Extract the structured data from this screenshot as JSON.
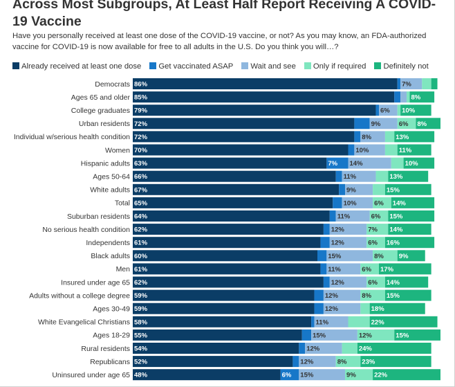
{
  "title": "Across Most Subgroups, At Least Half Report Receiving A COVID-19 Vaccine",
  "subtitle": "Have you personally received at least one dose of the COVID-19 vaccine, or not? As you may know, an FDA-authorized vaccine for COVID-19 is now available for free to all adults in the U.S. Do you think you will…?",
  "chart_data": {
    "type": "bar",
    "orientation": "horizontal",
    "stacked": true,
    "legend_position": "top",
    "grid": false,
    "categories": [
      "Democrats",
      "Ages 65 and older",
      "College graduates",
      "Urban residents",
      "Individual w/serious health condition",
      "Women",
      "Hispanic adults",
      "Ages 50-64",
      "White adults",
      "Total",
      "Suburban residents",
      "No serious health condition",
      "Independents",
      "Black adults",
      "Men",
      "Insured under age 65",
      "Adults without a college degree",
      "Ages 30-49",
      "White Evangelical Christians",
      "Ages 18-29",
      "Rural residents",
      "Republicans",
      "Uninsured under age 65"
    ],
    "series": [
      {
        "name": "Already received at least one dose",
        "color": "#0b3d66",
        "text_color": "#ffffff",
        "values": [
          86,
          85,
          79,
          72,
          72,
          70,
          63,
          66,
          67,
          65,
          64,
          62,
          61,
          60,
          61,
          62,
          59,
          59,
          58,
          55,
          54,
          52,
          48
        ]
      },
      {
        "name": "Get vaccinated ASAP",
        "color": "#1777c8",
        "text_color": "#ffffff",
        "values": [
          1,
          2,
          1,
          5,
          2,
          2,
          7,
          2,
          2,
          3,
          2,
          2,
          3,
          3,
          2,
          2,
          3,
          3,
          1,
          3,
          2,
          2,
          6
        ]
      },
      {
        "name": "Wait and see",
        "color": "#8fb7de",
        "text_color": "#333333",
        "values": [
          7,
          2,
          6,
          9,
          8,
          10,
          14,
          11,
          9,
          10,
          11,
          12,
          12,
          15,
          11,
          12,
          12,
          12,
          11,
          15,
          12,
          12,
          15
        ]
      },
      {
        "name": "Only if required",
        "color": "#7fe6bf",
        "text_color": "#333333",
        "values": [
          3,
          1,
          1,
          6,
          3,
          4,
          4,
          4,
          4,
          6,
          6,
          7,
          6,
          8,
          6,
          6,
          8,
          3,
          7,
          12,
          5,
          8,
          9
        ]
      },
      {
        "name": "Definitely not",
        "color": "#1db57f",
        "text_color": "#ffffff",
        "values": [
          2,
          8,
          10,
          8,
          13,
          11,
          10,
          13,
          15,
          14,
          15,
          14,
          16,
          9,
          17,
          14,
          15,
          18,
          22,
          15,
          24,
          23,
          22
        ]
      }
    ],
    "label_visibility": [
      [
        true,
        true,
        true,
        true,
        true,
        true,
        true,
        true,
        true,
        true,
        true,
        true,
        true,
        true,
        true,
        true,
        true,
        true,
        true,
        true,
        true,
        true,
        true
      ],
      [
        false,
        false,
        false,
        false,
        false,
        false,
        true,
        false,
        false,
        false,
        false,
        false,
        false,
        false,
        false,
        false,
        false,
        false,
        false,
        false,
        false,
        false,
        true
      ],
      [
        true,
        false,
        true,
        true,
        true,
        true,
        true,
        true,
        true,
        true,
        true,
        true,
        true,
        true,
        true,
        true,
        true,
        true,
        true,
        true,
        true,
        true,
        true
      ],
      [
        false,
        false,
        false,
        true,
        false,
        false,
        false,
        false,
        false,
        true,
        true,
        true,
        true,
        true,
        true,
        true,
        true,
        false,
        false,
        true,
        false,
        true,
        true
      ],
      [
        false,
        true,
        true,
        true,
        true,
        true,
        true,
        true,
        true,
        true,
        true,
        true,
        true,
        true,
        true,
        true,
        true,
        true,
        true,
        true,
        true,
        true,
        true
      ]
    ],
    "value_suffix": "%",
    "xlim": [
      0,
      100
    ]
  }
}
